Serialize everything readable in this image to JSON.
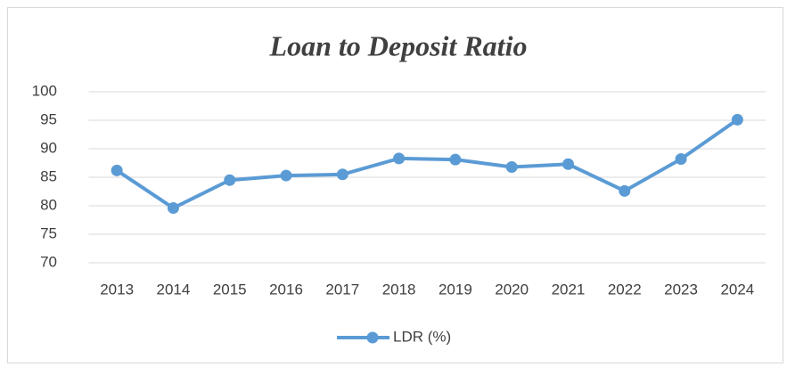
{
  "chart_data": {
    "type": "line",
    "title": "Loan to Deposit Ratio",
    "categories": [
      "2013",
      "2014",
      "2015",
      "2016",
      "2017",
      "2018",
      "2019",
      "2020",
      "2021",
      "2022",
      "2023",
      "2024"
    ],
    "series": [
      {
        "name": "LDR (%)",
        "color": "#5b9bd5",
        "values": [
          86.2,
          79.6,
          84.5,
          85.3,
          85.5,
          88.3,
          88.1,
          86.8,
          87.3,
          82.6,
          88.2,
          95.1
        ]
      }
    ],
    "ylim": [
      70,
      100
    ],
    "yticks": [
      70,
      75,
      80,
      85,
      90,
      95,
      100
    ],
    "grid": true,
    "legend": "bottom"
  }
}
